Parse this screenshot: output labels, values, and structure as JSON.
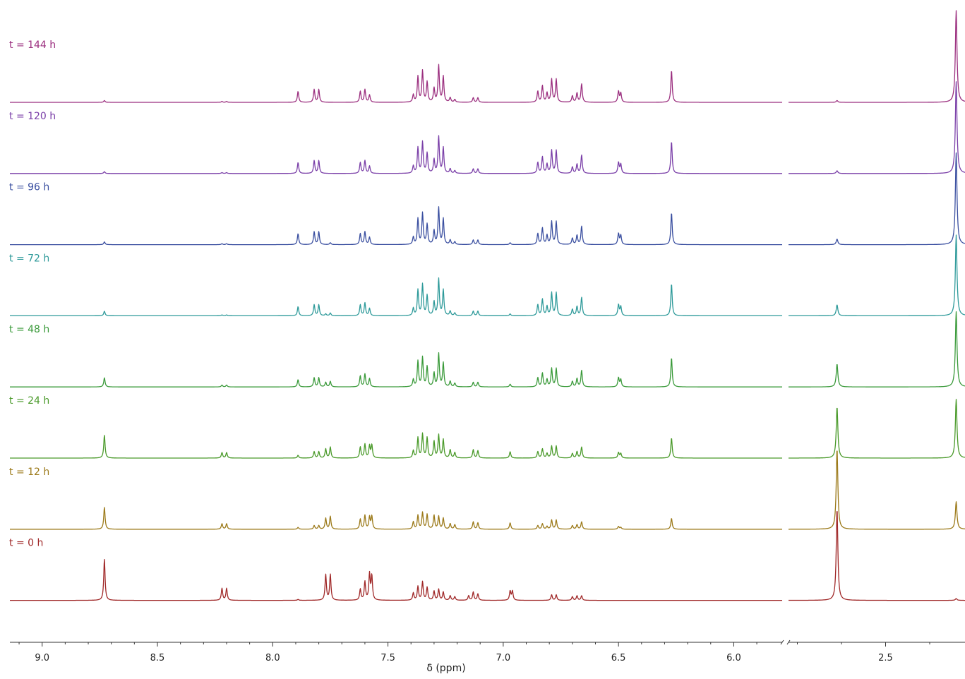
{
  "chart_data": {
    "type": "line",
    "title": "",
    "xlabel": "δ (ppm)",
    "ylabel": "",
    "x_reversed": true,
    "broken_axis": true,
    "x_segments": [
      [
        9.14,
        5.79
      ],
      [
        2.72,
        2.32
      ]
    ],
    "x_ticks_major": [
      9.0,
      8.5,
      8.0,
      7.5,
      7.0,
      6.5,
      6.0,
      2.5
    ],
    "x_tick_labels": [
      "9.0",
      "8.5",
      "8.0",
      "7.5",
      "7.0",
      "6.5",
      "6.0",
      "2.5"
    ],
    "x_ticks_minor": [
      9.1,
      8.9,
      8.8,
      8.7,
      8.6,
      8.4,
      8.3,
      8.2,
      8.1,
      7.9,
      7.8,
      7.7,
      7.6,
      7.4,
      7.3,
      7.2,
      7.1,
      6.9,
      6.8,
      6.7,
      6.6,
      6.4,
      6.3,
      6.2,
      6.1,
      5.9,
      2.7,
      2.6,
      2.4
    ],
    "legend": "left-of-each-trace",
    "grid": false,
    "series": [
      {
        "name": "t = 144 h",
        "color": "#9b2f7f",
        "peaks": [
          [
            8.73,
            0.02
          ],
          [
            8.22,
            0.01
          ],
          [
            8.2,
            0.01
          ],
          [
            7.89,
            0.12
          ],
          [
            7.82,
            0.14
          ],
          [
            7.8,
            0.14
          ],
          [
            7.62,
            0.12
          ],
          [
            7.6,
            0.14
          ],
          [
            7.58,
            0.08
          ],
          [
            7.39,
            0.08
          ],
          [
            7.37,
            0.28
          ],
          [
            7.35,
            0.34
          ],
          [
            7.33,
            0.22
          ],
          [
            7.3,
            0.15
          ],
          [
            7.28,
            0.4
          ],
          [
            7.26,
            0.28
          ],
          [
            7.23,
            0.05
          ],
          [
            7.21,
            0.03
          ],
          [
            7.13,
            0.05
          ],
          [
            7.11,
            0.05
          ],
          [
            6.85,
            0.12
          ],
          [
            6.83,
            0.18
          ],
          [
            6.81,
            0.1
          ],
          [
            6.79,
            0.25
          ],
          [
            6.77,
            0.25
          ],
          [
            6.7,
            0.07
          ],
          [
            6.68,
            0.1
          ],
          [
            6.66,
            0.2
          ],
          [
            6.5,
            0.12
          ],
          [
            6.49,
            0.1
          ],
          [
            6.27,
            0.35
          ],
          [
            2.61,
            0.02
          ],
          [
            2.34,
            1.0
          ]
        ]
      },
      {
        "name": "t = 120 h",
        "color": "#7a3fa8",
        "peaks": [
          [
            8.73,
            0.02
          ],
          [
            8.22,
            0.01
          ],
          [
            8.2,
            0.01
          ],
          [
            7.89,
            0.12
          ],
          [
            7.82,
            0.14
          ],
          [
            7.8,
            0.14
          ],
          [
            7.62,
            0.12
          ],
          [
            7.6,
            0.14
          ],
          [
            7.58,
            0.08
          ],
          [
            7.39,
            0.08
          ],
          [
            7.37,
            0.28
          ],
          [
            7.35,
            0.34
          ],
          [
            7.33,
            0.22
          ],
          [
            7.3,
            0.15
          ],
          [
            7.28,
            0.4
          ],
          [
            7.26,
            0.28
          ],
          [
            7.23,
            0.05
          ],
          [
            7.21,
            0.03
          ],
          [
            7.13,
            0.05
          ],
          [
            7.11,
            0.05
          ],
          [
            6.85,
            0.12
          ],
          [
            6.83,
            0.18
          ],
          [
            6.81,
            0.1
          ],
          [
            6.79,
            0.25
          ],
          [
            6.77,
            0.25
          ],
          [
            6.7,
            0.07
          ],
          [
            6.68,
            0.1
          ],
          [
            6.66,
            0.2
          ],
          [
            6.5,
            0.12
          ],
          [
            6.49,
            0.1
          ],
          [
            6.27,
            0.35
          ],
          [
            2.61,
            0.03
          ],
          [
            2.34,
            1.0
          ]
        ]
      },
      {
        "name": "t = 96 h",
        "color": "#3a4fa0",
        "peaks": [
          [
            8.73,
            0.03
          ],
          [
            8.22,
            0.01
          ],
          [
            8.2,
            0.01
          ],
          [
            7.89,
            0.12
          ],
          [
            7.82,
            0.14
          ],
          [
            7.8,
            0.14
          ],
          [
            7.75,
            0.02
          ],
          [
            7.62,
            0.12
          ],
          [
            7.6,
            0.14
          ],
          [
            7.58,
            0.08
          ],
          [
            7.39,
            0.08
          ],
          [
            7.37,
            0.28
          ],
          [
            7.35,
            0.34
          ],
          [
            7.33,
            0.22
          ],
          [
            7.3,
            0.15
          ],
          [
            7.28,
            0.4
          ],
          [
            7.26,
            0.28
          ],
          [
            7.23,
            0.05
          ],
          [
            7.21,
            0.03
          ],
          [
            7.13,
            0.05
          ],
          [
            7.11,
            0.05
          ],
          [
            6.97,
            0.02
          ],
          [
            6.85,
            0.12
          ],
          [
            6.83,
            0.18
          ],
          [
            6.81,
            0.1
          ],
          [
            6.79,
            0.25
          ],
          [
            6.77,
            0.25
          ],
          [
            6.7,
            0.07
          ],
          [
            6.68,
            0.1
          ],
          [
            6.66,
            0.2
          ],
          [
            6.5,
            0.12
          ],
          [
            6.49,
            0.1
          ],
          [
            6.27,
            0.35
          ],
          [
            2.61,
            0.06
          ],
          [
            2.34,
            1.0
          ]
        ]
      },
      {
        "name": "t = 72 h",
        "color": "#2e9a9a",
        "peaks": [
          [
            8.73,
            0.05
          ],
          [
            8.22,
            0.01
          ],
          [
            8.2,
            0.01
          ],
          [
            7.89,
            0.1
          ],
          [
            7.82,
            0.12
          ],
          [
            7.8,
            0.12
          ],
          [
            7.77,
            0.02
          ],
          [
            7.75,
            0.03
          ],
          [
            7.62,
            0.12
          ],
          [
            7.6,
            0.14
          ],
          [
            7.58,
            0.08
          ],
          [
            7.39,
            0.08
          ],
          [
            7.37,
            0.28
          ],
          [
            7.35,
            0.34
          ],
          [
            7.33,
            0.22
          ],
          [
            7.3,
            0.15
          ],
          [
            7.28,
            0.4
          ],
          [
            7.26,
            0.28
          ],
          [
            7.23,
            0.05
          ],
          [
            7.21,
            0.03
          ],
          [
            7.13,
            0.05
          ],
          [
            7.11,
            0.05
          ],
          [
            6.97,
            0.02
          ],
          [
            6.85,
            0.12
          ],
          [
            6.83,
            0.18
          ],
          [
            6.81,
            0.1
          ],
          [
            6.79,
            0.25
          ],
          [
            6.77,
            0.25
          ],
          [
            6.7,
            0.07
          ],
          [
            6.68,
            0.1
          ],
          [
            6.66,
            0.2
          ],
          [
            6.5,
            0.12
          ],
          [
            6.49,
            0.1
          ],
          [
            6.27,
            0.35
          ],
          [
            2.61,
            0.12
          ],
          [
            2.34,
            0.88
          ]
        ]
      },
      {
        "name": "t = 48 h",
        "color": "#3a9a3a",
        "peaks": [
          [
            8.73,
            0.1
          ],
          [
            8.22,
            0.02
          ],
          [
            8.2,
            0.02
          ],
          [
            7.89,
            0.08
          ],
          [
            7.82,
            0.1
          ],
          [
            7.8,
            0.1
          ],
          [
            7.77,
            0.05
          ],
          [
            7.75,
            0.06
          ],
          [
            7.62,
            0.12
          ],
          [
            7.6,
            0.14
          ],
          [
            7.58,
            0.09
          ],
          [
            7.39,
            0.08
          ],
          [
            7.37,
            0.28
          ],
          [
            7.35,
            0.32
          ],
          [
            7.33,
            0.22
          ],
          [
            7.3,
            0.15
          ],
          [
            7.28,
            0.36
          ],
          [
            7.26,
            0.26
          ],
          [
            7.23,
            0.06
          ],
          [
            7.21,
            0.04
          ],
          [
            7.13,
            0.05
          ],
          [
            7.11,
            0.05
          ],
          [
            6.97,
            0.03
          ],
          [
            6.85,
            0.1
          ],
          [
            6.83,
            0.15
          ],
          [
            6.81,
            0.08
          ],
          [
            6.79,
            0.2
          ],
          [
            6.77,
            0.2
          ],
          [
            6.7,
            0.06
          ],
          [
            6.68,
            0.09
          ],
          [
            6.66,
            0.18
          ],
          [
            6.5,
            0.1
          ],
          [
            6.49,
            0.08
          ],
          [
            6.27,
            0.32
          ],
          [
            2.61,
            0.25
          ],
          [
            2.34,
            0.82
          ]
        ]
      },
      {
        "name": "t = 24 h",
        "color": "#4a9a2a",
        "peaks": [
          [
            8.73,
            0.25
          ],
          [
            8.22,
            0.06
          ],
          [
            8.2,
            0.06
          ],
          [
            7.89,
            0.03
          ],
          [
            7.82,
            0.07
          ],
          [
            7.8,
            0.07
          ],
          [
            7.77,
            0.1
          ],
          [
            7.75,
            0.12
          ],
          [
            7.62,
            0.12
          ],
          [
            7.6,
            0.15
          ],
          [
            7.58,
            0.13
          ],
          [
            7.57,
            0.14
          ],
          [
            7.39,
            0.08
          ],
          [
            7.37,
            0.22
          ],
          [
            7.35,
            0.26
          ],
          [
            7.33,
            0.22
          ],
          [
            7.3,
            0.18
          ],
          [
            7.28,
            0.25
          ],
          [
            7.26,
            0.2
          ],
          [
            7.23,
            0.09
          ],
          [
            7.21,
            0.06
          ],
          [
            7.13,
            0.09
          ],
          [
            7.11,
            0.08
          ],
          [
            6.97,
            0.07
          ],
          [
            6.85,
            0.07
          ],
          [
            6.83,
            0.1
          ],
          [
            6.81,
            0.05
          ],
          [
            6.79,
            0.13
          ],
          [
            6.77,
            0.13
          ],
          [
            6.7,
            0.05
          ],
          [
            6.68,
            0.07
          ],
          [
            6.66,
            0.12
          ],
          [
            6.5,
            0.06
          ],
          [
            6.49,
            0.05
          ],
          [
            6.27,
            0.22
          ],
          [
            2.61,
            0.56
          ],
          [
            2.34,
            0.64
          ]
        ]
      },
      {
        "name": "t = 12 h",
        "color": "#9c7a1a",
        "peaks": [
          [
            8.73,
            0.24
          ],
          [
            8.22,
            0.06
          ],
          [
            8.2,
            0.06
          ],
          [
            7.89,
            0.02
          ],
          [
            7.82,
            0.04
          ],
          [
            7.8,
            0.04
          ],
          [
            7.77,
            0.12
          ],
          [
            7.75,
            0.14
          ],
          [
            7.62,
            0.11
          ],
          [
            7.6,
            0.15
          ],
          [
            7.58,
            0.13
          ],
          [
            7.57,
            0.14
          ],
          [
            7.39,
            0.08
          ],
          [
            7.37,
            0.15
          ],
          [
            7.35,
            0.18
          ],
          [
            7.33,
            0.16
          ],
          [
            7.3,
            0.15
          ],
          [
            7.28,
            0.14
          ],
          [
            7.26,
            0.12
          ],
          [
            7.23,
            0.06
          ],
          [
            7.21,
            0.05
          ],
          [
            7.13,
            0.08
          ],
          [
            7.11,
            0.07
          ],
          [
            6.97,
            0.07
          ],
          [
            6.85,
            0.04
          ],
          [
            6.83,
            0.06
          ],
          [
            6.81,
            0.03
          ],
          [
            6.79,
            0.1
          ],
          [
            6.77,
            0.1
          ],
          [
            6.7,
            0.04
          ],
          [
            6.68,
            0.05
          ],
          [
            6.66,
            0.08
          ],
          [
            6.5,
            0.03
          ],
          [
            6.49,
            0.02
          ],
          [
            6.27,
            0.12
          ],
          [
            2.61,
            0.88
          ],
          [
            2.34,
            0.3
          ]
        ]
      },
      {
        "name": "t = 0 h",
        "color": "#a02828",
        "peaks": [
          [
            8.73,
            0.45
          ],
          [
            8.22,
            0.13
          ],
          [
            8.2,
            0.13
          ],
          [
            7.89,
            0.01
          ],
          [
            7.77,
            0.28
          ],
          [
            7.75,
            0.28
          ],
          [
            7.62,
            0.12
          ],
          [
            7.6,
            0.2
          ],
          [
            7.58,
            0.28
          ],
          [
            7.57,
            0.26
          ],
          [
            7.39,
            0.08
          ],
          [
            7.37,
            0.15
          ],
          [
            7.35,
            0.2
          ],
          [
            7.33,
            0.14
          ],
          [
            7.3,
            0.1
          ],
          [
            7.28,
            0.12
          ],
          [
            7.26,
            0.09
          ],
          [
            7.23,
            0.05
          ],
          [
            7.21,
            0.04
          ],
          [
            7.15,
            0.05
          ],
          [
            7.13,
            0.09
          ],
          [
            7.11,
            0.07
          ],
          [
            6.97,
            0.1
          ],
          [
            6.96,
            0.1
          ],
          [
            6.79,
            0.06
          ],
          [
            6.77,
            0.06
          ],
          [
            6.7,
            0.04
          ],
          [
            6.68,
            0.05
          ],
          [
            6.66,
            0.05
          ],
          [
            2.61,
            1.0
          ],
          [
            2.34,
            0.02
          ]
        ]
      }
    ]
  }
}
